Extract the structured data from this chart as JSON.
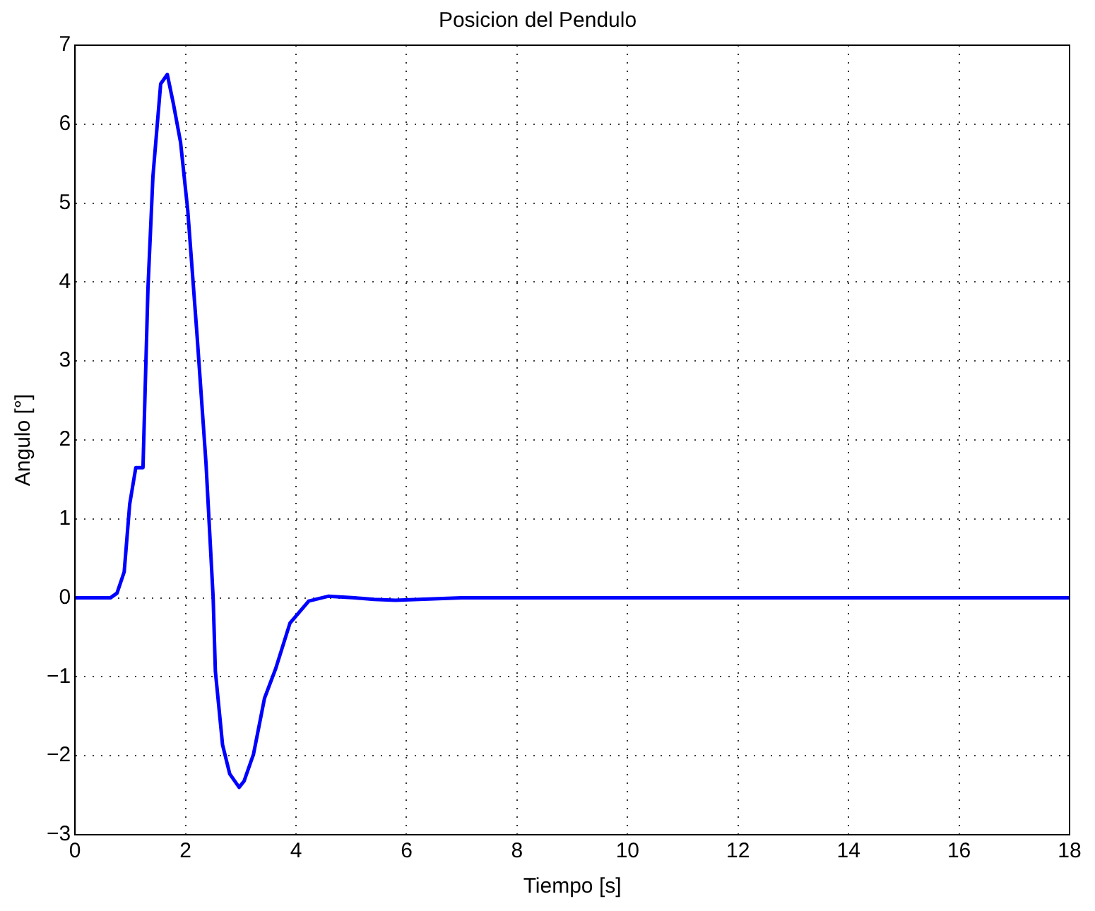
{
  "chart_data": {
    "type": "line",
    "title": "Posicion del Pendulo",
    "xlabel": "Tiempo [s]",
    "ylabel": "Angulo [°]",
    "x": [
      0,
      0.64,
      0.76,
      0.89,
      0.99,
      1.1,
      1.23,
      1.32,
      1.41,
      1.55,
      1.67,
      1.78,
      1.91,
      2.04,
      2.21,
      2.37,
      2.5,
      2.54,
      2.67,
      2.8,
      2.97,
      3.06,
      3.23,
      3.43,
      3.63,
      3.89,
      4.23,
      4.58,
      5.06,
      5.41,
      5.8,
      7,
      10,
      14,
      18
    ],
    "series": [
      {
        "color": "#0000ff",
        "values": [
          0,
          0,
          0.06,
          0.33,
          1.19,
          1.65,
          1.65,
          3.92,
          5.34,
          6.51,
          6.63,
          6.26,
          5.77,
          4.91,
          3.31,
          1.71,
          0,
          -0.93,
          -1.86,
          -2.23,
          -2.4,
          -2.32,
          -1.98,
          -1.27,
          -0.9,
          -0.32,
          -0.04,
          0.02,
          0,
          -0.02,
          -0.03,
          0,
          0,
          0,
          0
        ]
      }
    ],
    "xlim": [
      0,
      18
    ],
    "xticks": [
      0,
      2,
      4,
      6,
      8,
      10,
      12,
      14,
      16,
      18
    ],
    "ylim": [
      -3,
      7
    ],
    "yticks": [
      -3,
      -2,
      -1,
      0,
      1,
      2,
      3,
      4,
      5,
      6,
      7
    ],
    "grid": true,
    "legend": false,
    "marker": "none",
    "line_style": "solid"
  }
}
